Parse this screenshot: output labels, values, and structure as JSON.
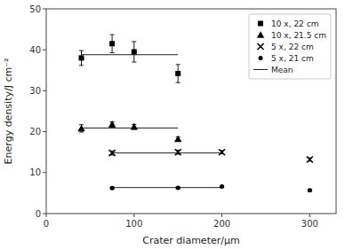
{
  "chart_data": {
    "type": "scatter",
    "xlabel": "Crater diameter/μm",
    "ylabel": "Energy density/J cm⁻²",
    "xlim": [
      0,
      330
    ],
    "ylim": [
      0,
      50
    ],
    "xticks": [
      0,
      100,
      200,
      300
    ],
    "yticks": [
      0,
      10,
      20,
      30,
      40,
      50
    ],
    "grid": false,
    "legend": "upper right",
    "mean_name": "Mean",
    "series": [
      {
        "name": "10 x,  22 cm",
        "marker": "square",
        "color": "black",
        "x": [
          40,
          75,
          100,
          150
        ],
        "values": [
          38.0,
          41.5,
          39.5,
          34.2
        ],
        "errors": [
          1.8,
          2.2,
          2.5,
          2.2
        ],
        "mean": {
          "x": [
            40,
            150
          ],
          "values": [
            38.8,
            38.8
          ]
        }
      },
      {
        "name": "10 x,  21.5 cm",
        "marker": "triangle",
        "color": "black",
        "x": [
          40,
          75,
          100,
          150
        ],
        "values": [
          20.8,
          21.8,
          21.2,
          18.2
        ],
        "errors": [
          0.9,
          0.6,
          0.6,
          0.5
        ],
        "mean": {
          "x": [
            40,
            150
          ],
          "values": [
            20.9,
            20.9
          ]
        }
      },
      {
        "name": "5 x,  22 cm",
        "marker": "cross",
        "color": "black",
        "x": [
          75,
          150,
          200,
          300
        ],
        "values": [
          14.8,
          15.0,
          15.0,
          13.2
        ],
        "errors": [
          0.5,
          0.5,
          0.4,
          0.4
        ],
        "mean": {
          "x": [
            75,
            200
          ],
          "values": [
            14.8,
            14.8
          ]
        }
      },
      {
        "name": "5 x,  21 cm",
        "marker": "circle",
        "color": "black",
        "x": [
          75,
          150,
          200,
          300
        ],
        "values": [
          6.2,
          6.3,
          6.6,
          5.7
        ],
        "errors": [
          0.25,
          0.25,
          0.25,
          0.25
        ],
        "mean": {
          "x": [
            75,
            200
          ],
          "values": [
            6.35,
            6.35
          ]
        }
      }
    ]
  }
}
